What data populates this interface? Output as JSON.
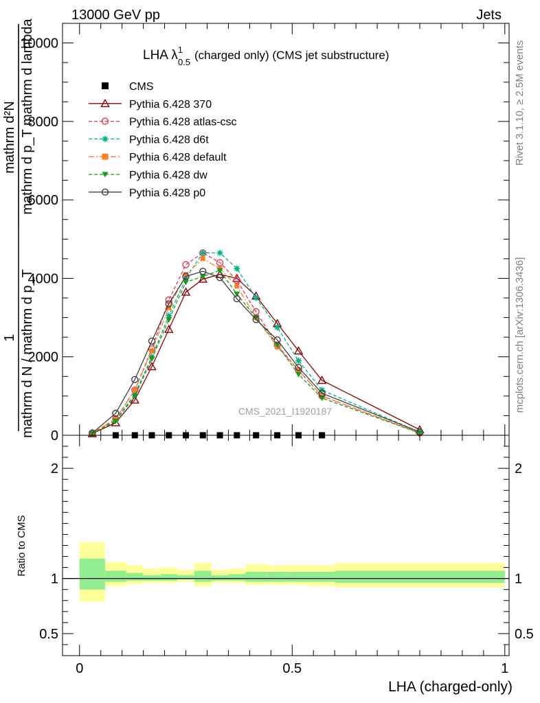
{
  "header": {
    "left": "13000 GeV pp",
    "right": "Jets"
  },
  "side_labels": {
    "right_top": "Rivet 3.1.10, ≥ 2.5M events",
    "right_bottom": "mcplots.cern.ch [arXiv:1306.3436]"
  },
  "chart_data": [
    {
      "type": "line",
      "title": "LHA λ",
      "title_sup": "1",
      "title_sub": "0.5",
      "title_rest": "(charged only) (CMS jet substructure)",
      "ylabel_fraction_numerator": "1",
      "ylabel_fraction_denominator": "mathrm d N / mathrm d p_T",
      "ylabel_top_expr": "mathrm d²N",
      "ylabel_bottom_expr": "mathrm d p_T mathrm d lambda",
      "watermark": "CMS_2021_I1920187",
      "xlim": [
        -0.04,
        1.01
      ],
      "ylim": [
        0,
        10500
      ],
      "yticks": [
        0,
        2000,
        4000,
        6000,
        8000,
        10000
      ],
      "ytick_labels": [
        "0",
        "2000",
        "4000",
        "6000",
        "8000",
        "10000"
      ],
      "x": [
        0.03,
        0.085,
        0.13,
        0.17,
        0.21,
        0.25,
        0.29,
        0.33,
        0.37,
        0.415,
        0.465,
        0.515,
        0.57,
        0.8
      ],
      "series": [
        {
          "name": "CMS",
          "color": "#000000",
          "marker": "square",
          "dash": "none",
          "x": [
            0.085,
            0.13,
            0.17,
            0.21,
            0.25,
            0.29,
            0.33,
            0.37,
            0.415,
            0.465,
            0.515,
            0.57
          ],
          "values": [
            0,
            0,
            0,
            0,
            0,
            0,
            0,
            0,
            0,
            0,
            0,
            0
          ]
        },
        {
          "name": "Pythia 6.428 370",
          "color": "#8b0000",
          "marker": "triangle-open",
          "dash": "solid",
          "values": [
            40,
            320,
            900,
            1750,
            2700,
            3650,
            3980,
            4100,
            4000,
            3550,
            2850,
            2150,
            1400,
            140
          ]
        },
        {
          "name": "Pythia 6.428 atlas-csc",
          "color": "#e8364f",
          "marker": "circle-open",
          "dash": "dashed",
          "values": [
            50,
            420,
            1150,
            2200,
            3450,
            4350,
            4650,
            4400,
            3950,
            3150,
            2300,
            1650,
            1000,
            60
          ]
        },
        {
          "name": "Pythia 6.428 d6t",
          "color": "#00b386",
          "marker": "asterisk",
          "dash": "dashed",
          "values": [
            45,
            380,
            1050,
            2000,
            3050,
            4000,
            4650,
            4650,
            4250,
            3500,
            2750,
            1900,
            1150,
            80
          ]
        },
        {
          "name": "Pythia 6.428 default",
          "color": "#ff7f27",
          "marker": "square-filled",
          "dash": "dashdot",
          "values": [
            48,
            410,
            1150,
            2150,
            3250,
            4100,
            4500,
            4250,
            3800,
            3000,
            2250,
            1650,
            1000,
            50
          ]
        },
        {
          "name": "Pythia 6.428 dw",
          "color": "#1a9a1a",
          "marker": "triangle-down-filled",
          "dash": "dashed",
          "values": [
            40,
            360,
            1000,
            1950,
            2950,
            3900,
            4050,
            4200,
            3600,
            3000,
            2300,
            1550,
            950,
            55
          ]
        },
        {
          "name": "Pythia 6.428 p0",
          "color": "#404040",
          "marker": "circle-open",
          "dash": "solid",
          "values": [
            55,
            560,
            1420,
            2400,
            3350,
            4050,
            4180,
            4020,
            3480,
            2950,
            2430,
            1730,
            1070,
            85
          ]
        }
      ],
      "legend_placement": "top-left"
    },
    {
      "type": "area",
      "ylabel": "Ratio to CMS",
      "xlabel": "LHA (charged-only)",
      "xlim": [
        -0.04,
        1.01
      ],
      "ylim": [
        0.3,
        2.3
      ],
      "yticks": [
        0.5,
        1,
        2
      ],
      "ytick_labels": [
        "0.5",
        "1",
        "2"
      ],
      "xticks": [
        0,
        0.5,
        1
      ],
      "xtick_labels": [
        "0",
        "0.5",
        "1"
      ],
      "reference_line": 1,
      "bins": [
        {
          "x0": 0.0,
          "x1": 0.06,
          "inner": [
            0.9,
            1.18
          ],
          "outer": [
            0.79,
            1.33
          ]
        },
        {
          "x0": 0.06,
          "x1": 0.11,
          "inner": [
            0.97,
            1.07
          ],
          "outer": [
            0.93,
            1.15
          ]
        },
        {
          "x0": 0.11,
          "x1": 0.15,
          "inner": [
            0.98,
            1.05
          ],
          "outer": [
            0.95,
            1.12
          ]
        },
        {
          "x0": 0.15,
          "x1": 0.19,
          "inner": [
            0.98,
            1.03
          ],
          "outer": [
            0.96,
            1.09
          ]
        },
        {
          "x0": 0.19,
          "x1": 0.23,
          "inner": [
            0.98,
            1.04
          ],
          "outer": [
            0.96,
            1.1
          ]
        },
        {
          "x0": 0.23,
          "x1": 0.27,
          "inner": [
            0.99,
            1.03
          ],
          "outer": [
            0.97,
            1.08
          ]
        },
        {
          "x0": 0.27,
          "x1": 0.31,
          "inner": [
            0.97,
            1.07
          ],
          "outer": [
            0.93,
            1.14
          ]
        },
        {
          "x0": 0.31,
          "x1": 0.35,
          "inner": [
            0.98,
            1.03
          ],
          "outer": [
            0.96,
            1.08
          ]
        },
        {
          "x0": 0.35,
          "x1": 0.39,
          "inner": [
            0.98,
            1.04
          ],
          "outer": [
            0.96,
            1.09
          ]
        },
        {
          "x0": 0.39,
          "x1": 0.44,
          "inner": [
            0.97,
            1.06
          ],
          "outer": [
            0.94,
            1.13
          ]
        },
        {
          "x0": 0.44,
          "x1": 0.49,
          "inner": [
            0.97,
            1.06
          ],
          "outer": [
            0.94,
            1.12
          ]
        },
        {
          "x0": 0.49,
          "x1": 0.54,
          "inner": [
            0.97,
            1.06
          ],
          "outer": [
            0.94,
            1.12
          ]
        },
        {
          "x0": 0.54,
          "x1": 0.6,
          "inner": [
            0.97,
            1.06
          ],
          "outer": [
            0.93,
            1.12
          ]
        },
        {
          "x0": 0.6,
          "x1": 1.0,
          "inner": [
            0.96,
            1.07
          ],
          "outer": [
            0.92,
            1.14
          ]
        }
      ],
      "band_colors": {
        "inner": "#90ee90",
        "outer": "#ffff99"
      }
    }
  ]
}
